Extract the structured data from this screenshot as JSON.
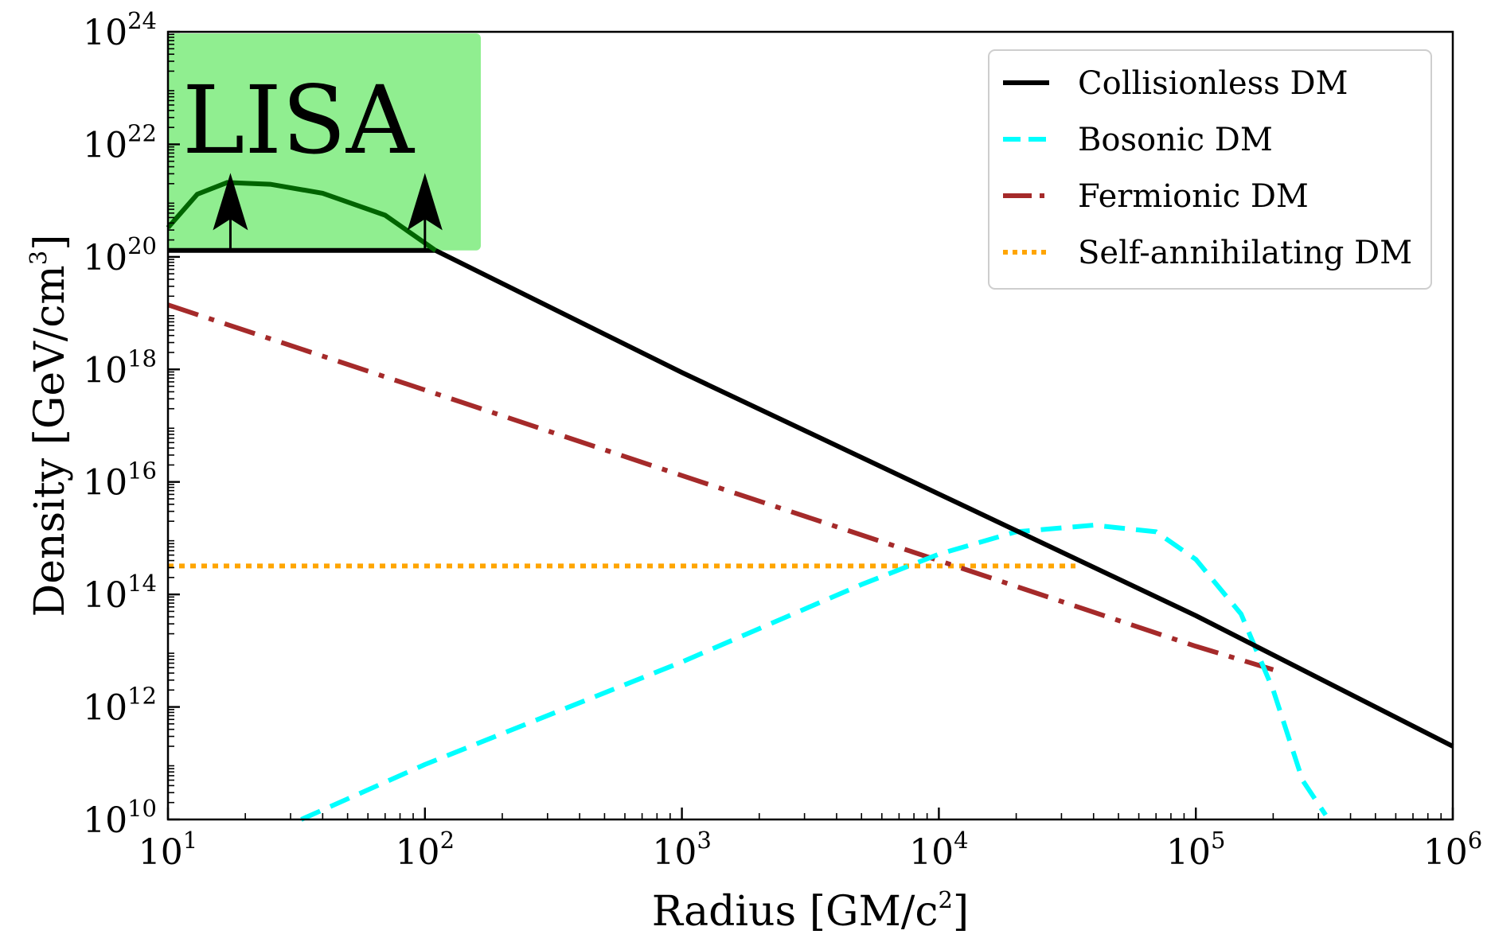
{
  "chart_data": {
    "type": "line",
    "title": "",
    "xlabel": "Radius [GM/c",
    "xlabel_sup": "2",
    "xlabel_tail": "]",
    "ylabel": "Density [GeV/cm",
    "ylabel_sup": "3",
    "ylabel_tail": "]",
    "x_scale": "log",
    "y_scale": "log",
    "xlim": [
      10,
      1000000
    ],
    "ylim": [
      10000000000.0,
      1e+24
    ],
    "grid": false,
    "legend_position": "top-right",
    "x_ticks": [
      {
        "value": 10,
        "base": "10",
        "exp": "1"
      },
      {
        "value": 100,
        "base": "10",
        "exp": "2"
      },
      {
        "value": 1000,
        "base": "10",
        "exp": "3"
      },
      {
        "value": 10000,
        "base": "10",
        "exp": "4"
      },
      {
        "value": 100000,
        "base": "10",
        "exp": "5"
      },
      {
        "value": 1000000,
        "base": "10",
        "exp": "6"
      }
    ],
    "y_ticks": [
      {
        "value": 10000000000.0,
        "base": "10",
        "exp": "10"
      },
      {
        "value": 1000000000000.0,
        "base": "10",
        "exp": "12"
      },
      {
        "value": 100000000000000.0,
        "base": "10",
        "exp": "14"
      },
      {
        "value": 1e+16,
        "base": "10",
        "exp": "16"
      },
      {
        "value": 1e+18,
        "base": "10",
        "exp": "18"
      },
      {
        "value": 1e+20,
        "base": "10",
        "exp": "20"
      },
      {
        "value": 1e+22,
        "base": "10",
        "exp": "22"
      },
      {
        "value": 1e+24,
        "base": "10",
        "exp": "24"
      }
    ],
    "series": [
      {
        "name": "Collisionless DM",
        "style": "solid",
        "color": "#000000",
        "x": [
          10,
          110,
          1000,
          10000,
          100000,
          1000000
        ],
        "y": [
          1.3e+20,
          1.3e+20,
          8.8e+17,
          6100000000000000.0,
          42000000000000.0,
          200000000000.0
        ]
      },
      {
        "name": "Bosonic DM",
        "style": "dashed",
        "color": "#00ffff",
        "x": [
          33,
          100,
          1000,
          5000,
          10000,
          20000,
          40000,
          70000,
          100000,
          150000,
          200000,
          260000,
          320000
        ],
        "y": [
          10000000000.0,
          95000000000.0,
          6300000000000.0,
          150000000000000.0,
          520000000000000.0,
          1300000000000000.0,
          1700000000000000.0,
          1300000000000000.0,
          420000000000000.0,
          45000000000000.0,
          2000000000000.0,
          50000000000.0,
          12000000000.0
        ]
      },
      {
        "name": "Fermionic DM",
        "style": "dashdot",
        "color": "#a52a2a",
        "x": [
          10,
          100,
          1000,
          10000,
          100000,
          200000
        ],
        "y": [
          1.4e+19,
          4.3e+17,
          1.3e+16,
          400000000000000.0,
          12000000000000.0,
          4600000000000.0
        ]
      },
      {
        "name": "Self-annihilating DM",
        "style": "dotted",
        "color": "#ffa500",
        "x": [
          10,
          34000
        ],
        "y": [
          320000000000000.0,
          320000000000000.0
        ]
      }
    ],
    "annotations": {
      "lisa_label": "LISA",
      "lisa_color": "#90ee90",
      "lisa_box_x": [
        10,
        165
      ],
      "lisa_box_y": [
        1.3e+20,
        1e+24
      ],
      "lisa_curve": {
        "color": "#006400",
        "x": [
          10,
          13,
          17,
          25,
          40,
          70,
          110
        ],
        "y": [
          3.3e+20,
          1.3e+21,
          2.1e+21,
          1.95e+21,
          1.35e+21,
          5.5e+20,
          1.3e+20
        ]
      },
      "arrows": [
        {
          "x": 17.5,
          "y_from": 1.3e+20,
          "y_to": 3.1e+21
        },
        {
          "x": 100,
          "y_from": 1.3e+20,
          "y_to": 3.1e+21
        }
      ]
    }
  }
}
